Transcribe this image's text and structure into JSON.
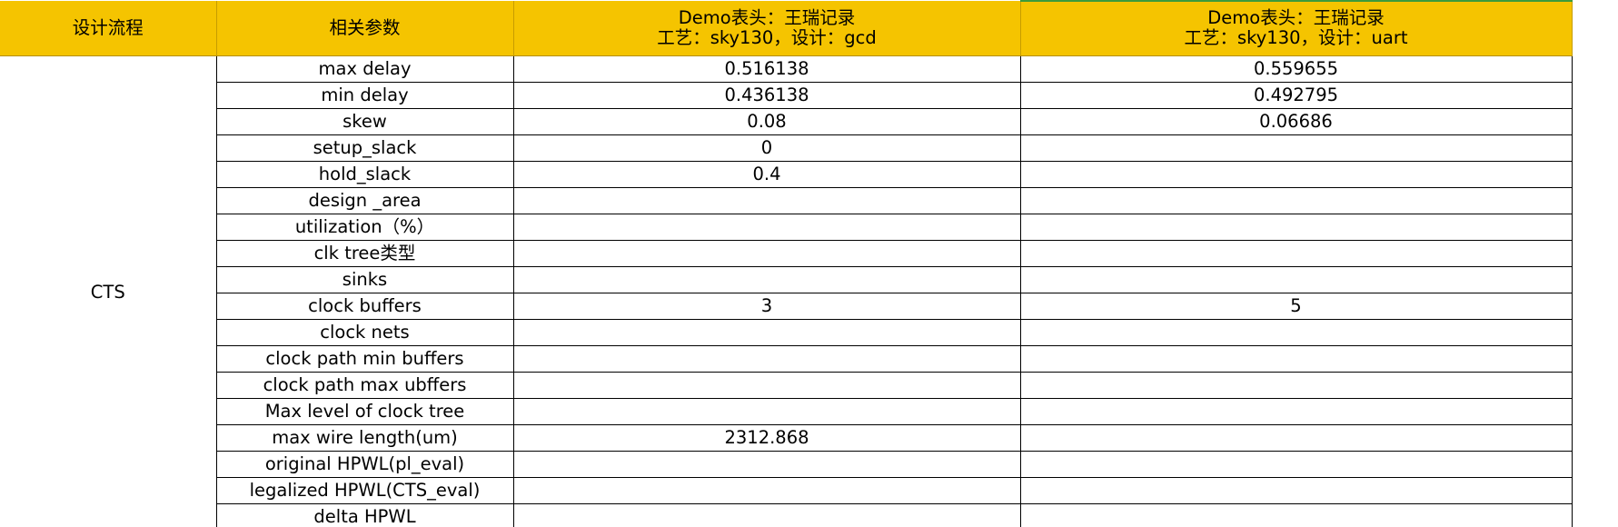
{
  "headers": {
    "flow": "设计流程",
    "params": "相关参数",
    "col_gcd_line1": "Demo表头：王瑞记录",
    "col_gcd_line2": "工艺：sky130，设计：gcd",
    "col_uart_line1": "Demo表头：王瑞记录",
    "col_uart_line2": "工艺：sky130，设计：uart"
  },
  "stage": "CTS",
  "rows": [
    {
      "param": "max delay",
      "gcd": "0.516138",
      "uart": "0.559655"
    },
    {
      "param": "min delay",
      "gcd": "0.436138",
      "uart": "0.492795"
    },
    {
      "param": "skew",
      "gcd": "0.08",
      "uart": "0.06686"
    },
    {
      "param": "setup_slack",
      "gcd": "0",
      "uart": ""
    },
    {
      "param": "hold_slack",
      "gcd": "0.4",
      "uart": ""
    },
    {
      "param": "design _area",
      "gcd": "",
      "uart": ""
    },
    {
      "param": "utilization（%）",
      "gcd": "",
      "uart": ""
    },
    {
      "param": "clk tree类型",
      "gcd": "",
      "uart": ""
    },
    {
      "param": "sinks",
      "gcd": "",
      "uart": ""
    },
    {
      "param": "clock buffers",
      "gcd": "3",
      "uart": "5"
    },
    {
      "param": "clock nets",
      "gcd": "",
      "uart": ""
    },
    {
      "param": "clock path min buffers",
      "gcd": "",
      "uart": ""
    },
    {
      "param": "clock path max ubffers",
      "gcd": "",
      "uart": ""
    },
    {
      "param": "Max level of clock tree",
      "gcd": "",
      "uart": ""
    },
    {
      "param": "max wire length(um)",
      "gcd": "2312.868",
      "uart": ""
    },
    {
      "param": "original HPWL(pl_eval)",
      "gcd": "",
      "uart": ""
    },
    {
      "param": "legalized HPWL(CTS_eval)",
      "gcd": "",
      "uart": ""
    },
    {
      "param": "delta HPWL",
      "gcd": "",
      "uart": ""
    }
  ],
  "colors": {
    "header_fill": "#f5c400",
    "selected_border": "#3c9b3c",
    "grid_line": "#000000"
  }
}
